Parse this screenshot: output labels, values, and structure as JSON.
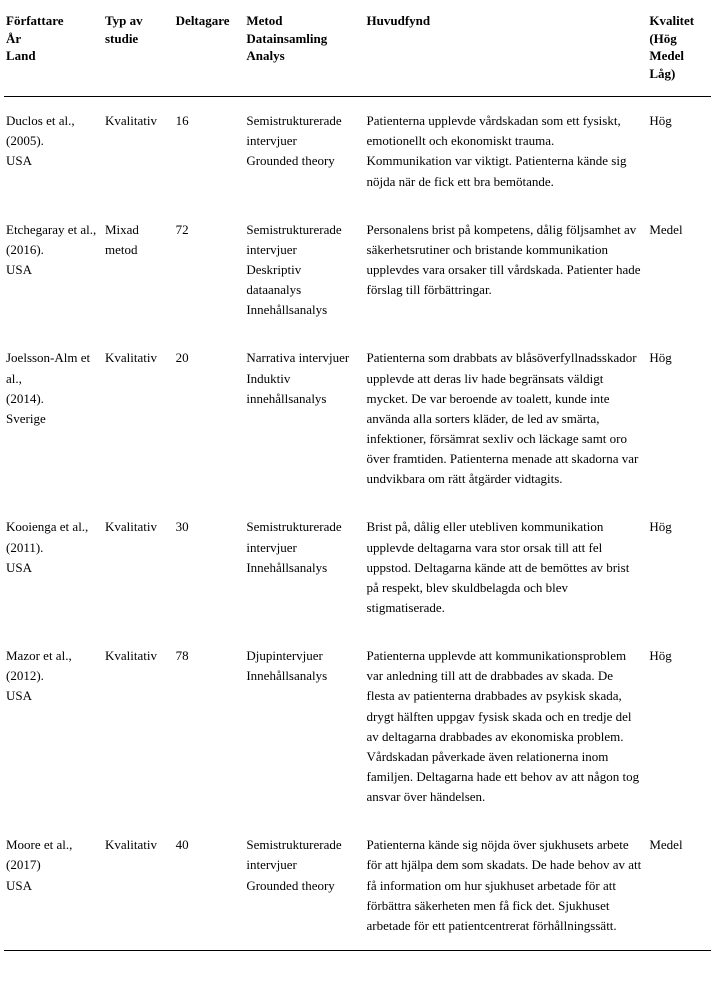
{
  "columns": [
    "Författare\nÅr\nLand",
    "Typ av studie",
    "Deltagare",
    "Metod\nDatainsamling\nAnalys",
    "Huvudfynd",
    "Kvalitet\n(Hög\nMedel\nLåg)"
  ],
  "rows": [
    {
      "author": "Duclos et al., (2005).\nUSA",
      "type": "Kvalitativ",
      "participants": "16",
      "method": "Semistrukturerade intervjuer\nGrounded theory",
      "findings": "Patienterna upplevde vårdskadan som ett fysiskt, emotionellt och ekonomiskt trauma. Kommunikation var viktigt. Patienterna kände sig nöjda när de fick ett bra bemötande.",
      "quality": "Hög"
    },
    {
      "author": "Etchegaray et al.,\n(2016).\nUSA",
      "type": "Mixad metod",
      "participants": "72",
      "method": "Semistrukturerade intervjuer\nDeskriptiv dataanalys\nInnehållsanalys",
      "findings": "Personalens brist på kompetens, dålig följsamhet av säkerhetsrutiner och bristande kommunikation upplevdes vara orsaker till vårdskada. Patienter hade förslag till förbättringar.",
      "quality": "Medel"
    },
    {
      "author": "Joelsson-Alm et al.,\n(2014).\nSverige",
      "type": "Kvalitativ",
      "participants": "20",
      "method": "Narrativa intervjuer\nInduktiv innehållsanalys",
      "findings": "Patienterna som drabbats av blåsöverfyllnadsskador upplevde att deras liv hade begränsats väldigt mycket. De var beroende av toalett, kunde inte använda alla sorters kläder, de led av smärta, infektioner, försämrat sexliv och läckage samt oro över framtiden. Patienterna menade att skadorna var undvikbara om rätt åtgärder vidtagits.",
      "quality": "Hög"
    },
    {
      "author": "Kooienga et al.,\n(2011).\nUSA",
      "type": "Kvalitativ",
      "participants": "30",
      "method": "Semistrukturerade intervjuer\nInnehållsanalys",
      "findings": "Brist på, dålig eller utebliven kommunikation upplevde deltagarna vara stor orsak till att fel uppstod. Deltagarna kände att de bemöttes av brist på respekt, blev skuldbelagda och blev stigmatiserade.",
      "quality": "Hög"
    },
    {
      "author": "Mazor et al., (2012).\nUSA",
      "type": "Kvalitativ",
      "participants": "78",
      "method": "Djupintervjuer\nInnehållsanalys",
      "findings": "Patienterna upplevde att kommunikationsproblem var anledning till att de drabbades av skada. De flesta av patienterna drabbades av psykisk skada, drygt hälften uppgav fysisk skada och en tredje del av deltagarna drabbades av ekonomiska problem. Vårdskadan påverkade även relationerna inom familjen. Deltagarna hade ett behov av att någon tog ansvar över händelsen.",
      "quality": "Hög"
    },
    {
      "author": "Moore et al., (2017)\nUSA",
      "type": "Kvalitativ",
      "participants": "40",
      "method": "Semistrukturerade intervjuer\nGrounded theory",
      "findings": "Patienterna kände sig nöjda över sjukhusets arbete för att hjälpa dem som skadats. De hade behov av att få information om hur sjukhuset arbetade för att förbättra säkerheten men få fick det. Sjukhuset arbetade för ett patientcentrerat förhållningssätt.",
      "quality": "Medel"
    }
  ]
}
